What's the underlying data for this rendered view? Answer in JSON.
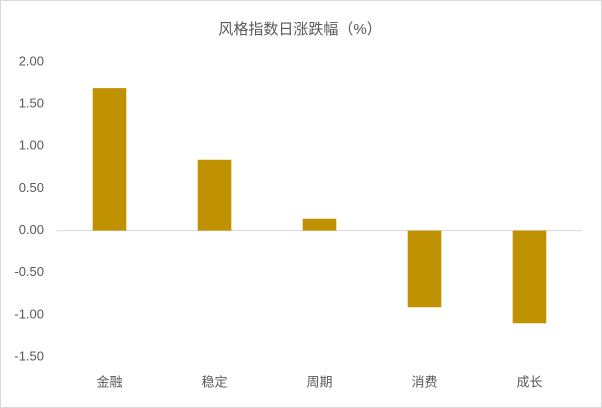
{
  "chart_data": {
    "type": "bar",
    "title": "风格指数日涨跌幅（%）",
    "categories": [
      "金融",
      "稳定",
      "周期",
      "消费",
      "成长"
    ],
    "values": [
      1.69,
      0.84,
      0.14,
      -0.91,
      -1.1
    ],
    "color": "#c09100",
    "ylim": [
      -1.5,
      2.0
    ],
    "yticks": [
      {
        "value": -1.5,
        "label": "-1.50"
      },
      {
        "value": -1.0,
        "label": "-1.00"
      },
      {
        "value": -0.5,
        "label": "-0.50"
      },
      {
        "value": 0,
        "label": "0.00"
      },
      {
        "value": 0.5,
        "label": "0.50"
      },
      {
        "value": 1.0,
        "label": "1.00"
      },
      {
        "value": 1.5,
        "label": "1.50"
      },
      {
        "value": 2.0,
        "label": "2.00"
      }
    ],
    "grid": false
  }
}
